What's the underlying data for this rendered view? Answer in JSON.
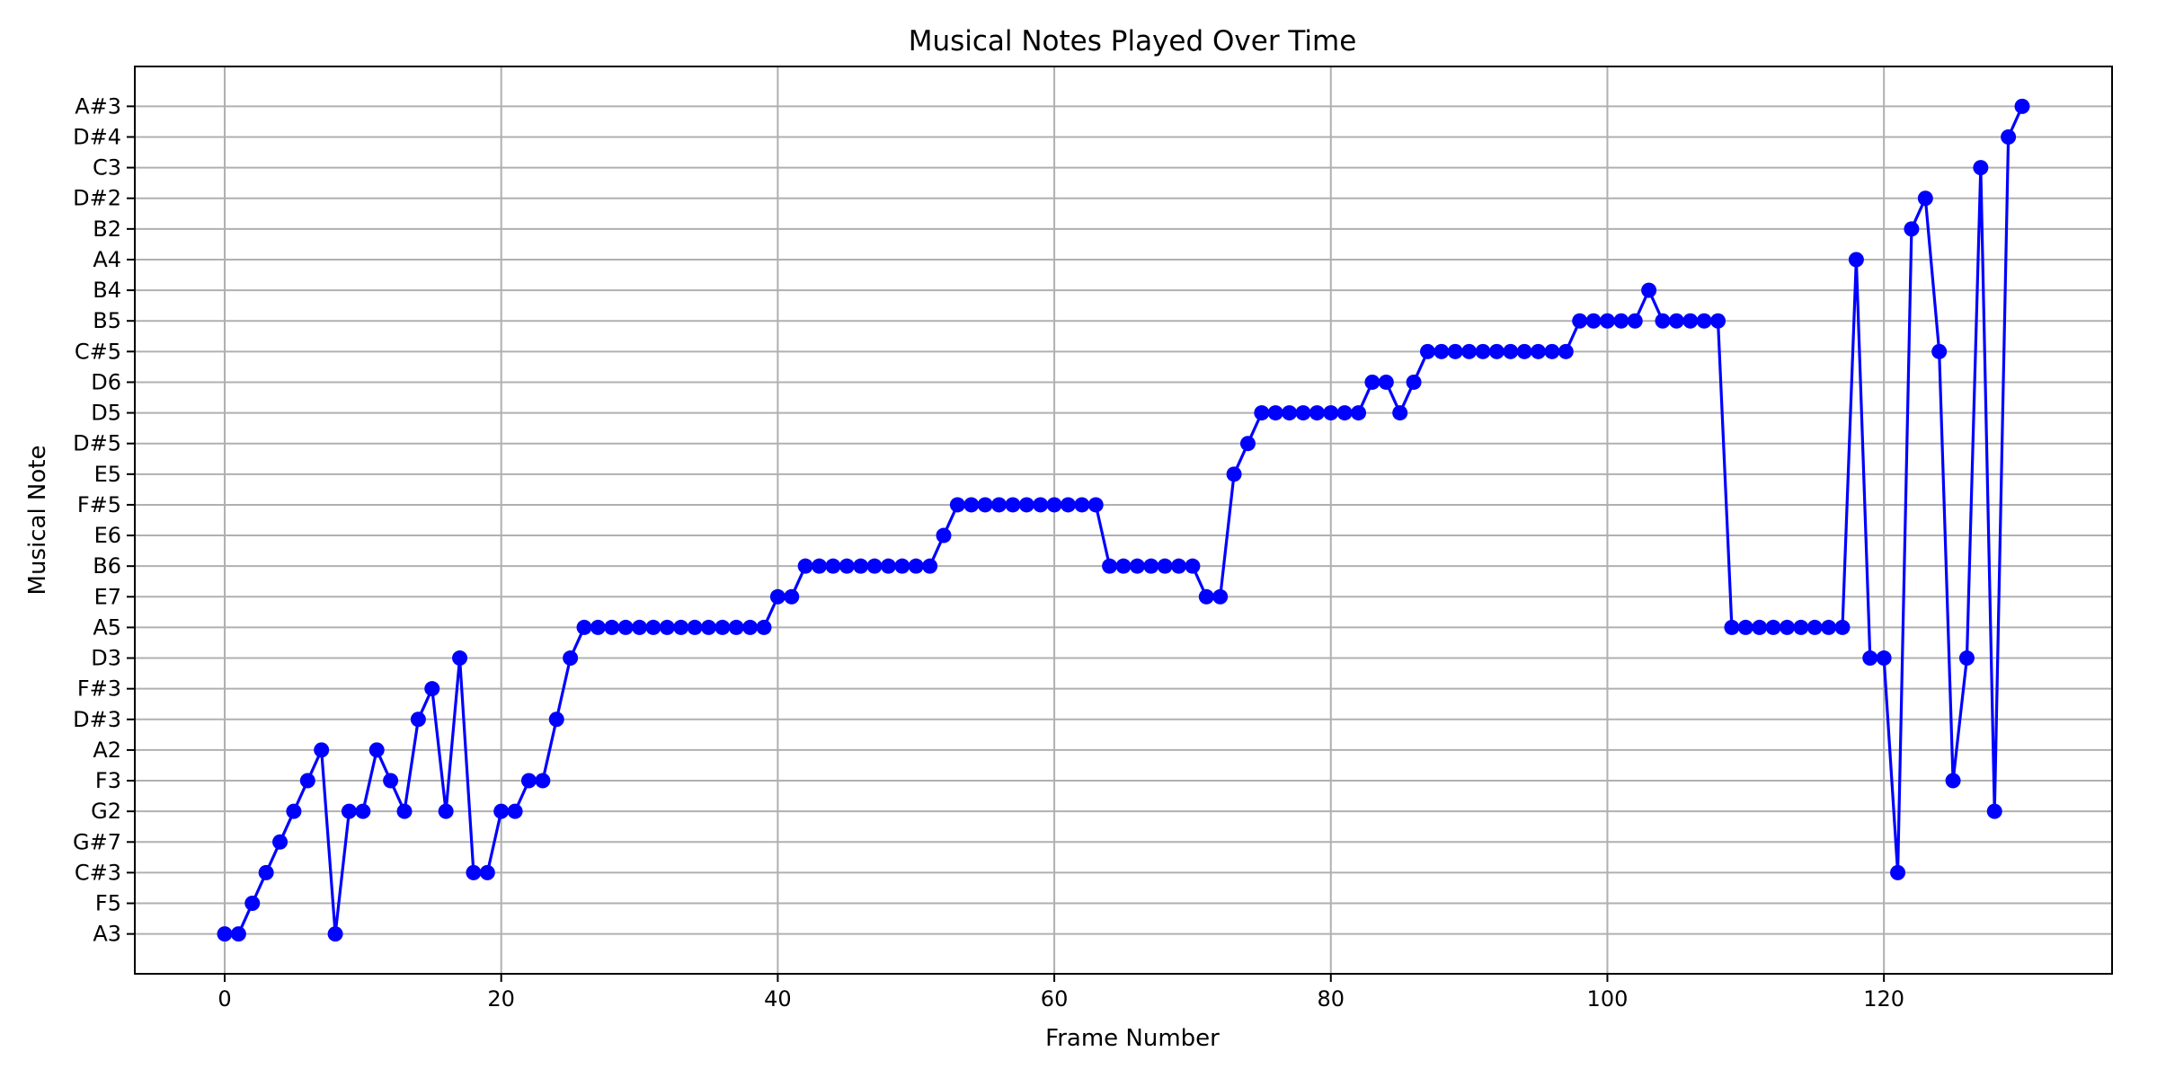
{
  "chart_data": {
    "type": "line",
    "title": "Musical Notes Played Over Time",
    "xlabel": "Frame Number",
    "ylabel": "Musical Note",
    "xlim": [
      -6.5,
      136.5
    ],
    "xticks": [
      0,
      20,
      40,
      60,
      80,
      100,
      120
    ],
    "grid": true,
    "series_color": "#0000ff",
    "y_categories": [
      "A3",
      "F5",
      "C#3",
      "G#7",
      "G2",
      "F3",
      "A2",
      "D#3",
      "F#3",
      "D3",
      "A5",
      "E7",
      "B6",
      "E6",
      "F#5",
      "E5",
      "D#5",
      "D5",
      "D6",
      "C#5",
      "B5",
      "B4",
      "A4",
      "B2",
      "D#2",
      "C3",
      "D#4",
      "A#3"
    ],
    "series": [
      {
        "values": [
          "A3",
          "A3",
          "F5",
          "C#3",
          "G#7",
          "G2",
          "F3",
          "A2",
          "A3",
          "G2",
          "G2",
          "A2",
          "F3",
          "G2",
          "D#3",
          "F#3",
          "G2",
          "D3",
          "C#3",
          "C#3",
          "G2",
          "G2",
          "F3",
          "F3",
          "D#3",
          "D3",
          "A5",
          "A5",
          "A5",
          "A5",
          "A5",
          "A5",
          "A5",
          "A5",
          "A5",
          "A5",
          "A5",
          "A5",
          "A5",
          "A5",
          "E7",
          "E7",
          "B6",
          "B6",
          "B6",
          "B6",
          "B6",
          "B6",
          "B6",
          "B6",
          "B6",
          "B6",
          "E6",
          "F#5",
          "F#5",
          "F#5",
          "F#5",
          "F#5",
          "F#5",
          "F#5",
          "F#5",
          "F#5",
          "F#5",
          "F#5",
          "B6",
          "B6",
          "B6",
          "B6",
          "B6",
          "B6",
          "B6",
          "E7",
          "E7",
          "E5",
          "D#5",
          "D5",
          "D5",
          "D5",
          "D5",
          "D5",
          "D5",
          "D5",
          "D5",
          "D6",
          "D6",
          "D5",
          "D6",
          "C#5",
          "C#5",
          "C#5",
          "C#5",
          "C#5",
          "C#5",
          "C#5",
          "C#5",
          "C#5",
          "C#5",
          "C#5",
          "B5",
          "B5",
          "B5",
          "B5",
          "B5",
          "B4",
          "B5",
          "B5",
          "B5",
          "B5",
          "B5",
          "A5",
          "A5",
          "A5",
          "A5",
          "A5",
          "A5",
          "A5",
          "A5",
          "A5",
          "A4",
          "D3",
          "D3",
          "C#3",
          "B2",
          "D#2",
          "C#5",
          "F3",
          "D3",
          "C3",
          "G2",
          "D#4",
          "A#3"
        ]
      }
    ]
  }
}
